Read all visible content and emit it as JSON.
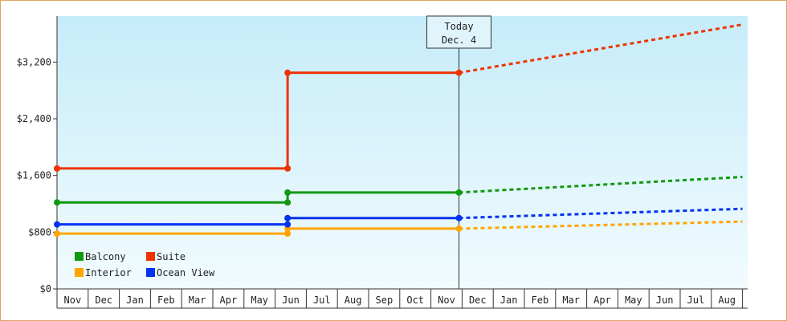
{
  "chart_data": {
    "type": "line",
    "step": true,
    "title": "",
    "xlabel": "",
    "ylabel": "",
    "ylim": [
      0,
      3850
    ],
    "y_ticks": [
      {
        "value": 0,
        "label": "$0"
      },
      {
        "value": 800,
        "label": "$800"
      },
      {
        "value": 1600,
        "label": "$1,600"
      },
      {
        "value": 2400,
        "label": "$2,400"
      },
      {
        "value": 3200,
        "label": "$3,200"
      }
    ],
    "x_ticks": [
      "Nov",
      "Dec",
      "Jan",
      "Feb",
      "Mar",
      "Apr",
      "May",
      "Jun",
      "Jul",
      "Aug",
      "Sep",
      "Oct",
      "Nov",
      "Dec",
      "Jan",
      "Feb",
      "Mar",
      "Apr",
      "May",
      "Jun",
      "Jul",
      "Aug"
    ],
    "today": {
      "label_line1": "Today",
      "label_line2": "Dec. 4",
      "position": 12.9
    },
    "legend": {
      "placement": "bottom-left"
    },
    "series": [
      {
        "name": "Balcony",
        "color": "#119911",
        "points": [
          [
            0,
            1220
          ],
          [
            7.4,
            1220
          ],
          [
            7.4,
            1360
          ],
          [
            12.9,
            1360
          ]
        ],
        "forecast": [
          [
            12.9,
            1360
          ],
          [
            22,
            1580
          ]
        ]
      },
      {
        "name": "Suite",
        "color": "#ee3300",
        "points": [
          [
            0,
            1700
          ],
          [
            7.4,
            1700
          ],
          [
            7.4,
            3050
          ],
          [
            12.9,
            3050
          ]
        ],
        "forecast": [
          [
            12.9,
            3050
          ],
          [
            22,
            3730
          ]
        ]
      },
      {
        "name": "Interior",
        "color": "#ffa500",
        "points": [
          [
            0,
            780
          ],
          [
            7.4,
            780
          ],
          [
            7.4,
            850
          ],
          [
            12.9,
            850
          ]
        ],
        "forecast": [
          [
            12.9,
            850
          ],
          [
            22,
            950
          ]
        ]
      },
      {
        "name": "Ocean View",
        "color": "#0033ee",
        "points": [
          [
            0,
            910
          ],
          [
            7.4,
            910
          ],
          [
            7.4,
            1000
          ],
          [
            12.9,
            1000
          ]
        ],
        "forecast": [
          [
            12.9,
            1000
          ],
          [
            22,
            1130
          ]
        ]
      }
    ]
  }
}
